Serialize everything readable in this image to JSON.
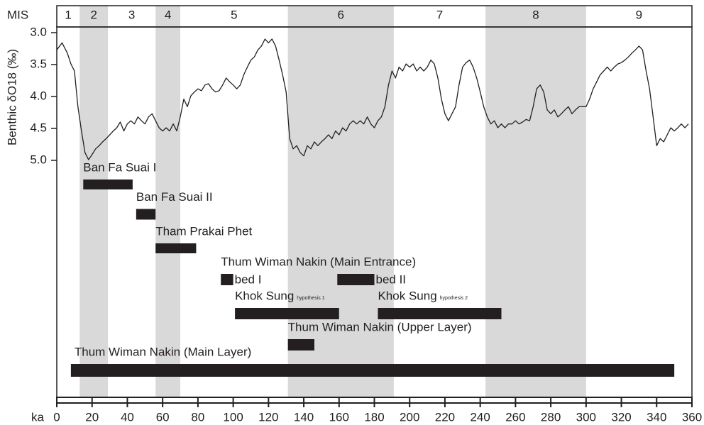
{
  "chart_data": {
    "type": "line",
    "x_label": "ka",
    "y_label": "Benthic δO18 (‰)",
    "xlim": [
      0,
      360
    ],
    "xticks": [
      0,
      20,
      40,
      60,
      80,
      100,
      120,
      140,
      160,
      180,
      200,
      220,
      240,
      260,
      280,
      300,
      320,
      340,
      360
    ],
    "ylim": [
      3,
      5
    ],
    "y_inverted": true,
    "yticks": [
      {
        "value": 3,
        "label": "3.0"
      },
      3.5,
      {
        "value": 4,
        "label": "4.0"
      },
      4.5,
      {
        "value": 5,
        "label": "5.0"
      }
    ],
    "color": "#231f20",
    "shade_color": "#d9d9d9",
    "range_color": "#231f20",
    "mis": {
      "label": "MIS",
      "stages": [
        {
          "name": "1",
          "start": 0,
          "end": 13,
          "shaded": false
        },
        {
          "name": "2",
          "start": 13,
          "end": 29,
          "shaded": true
        },
        {
          "name": "3",
          "start": 29,
          "end": 56,
          "shaded": false
        },
        {
          "name": "4",
          "start": 56,
          "end": 70,
          "shaded": true
        },
        {
          "name": "5",
          "start": 70,
          "end": 131,
          "shaded": false
        },
        {
          "name": "6",
          "start": 131,
          "end": 191,
          "shaded": true
        },
        {
          "name": "7",
          "start": 191,
          "end": 243,
          "shaded": false
        },
        {
          "name": "8",
          "start": 243,
          "end": 300,
          "shaded": true
        },
        {
          "name": "9",
          "start": 300,
          "end": 360,
          "shaded": false
        }
      ]
    },
    "x": [
      0,
      3,
      6,
      8,
      10,
      12,
      14,
      16,
      18,
      20,
      22,
      24,
      26,
      28,
      30,
      32,
      34,
      36,
      38,
      40,
      42,
      44,
      46,
      48,
      50,
      52,
      54,
      56,
      58,
      60,
      62,
      64,
      66,
      68,
      70,
      72,
      74,
      76,
      78,
      80,
      82,
      84,
      86,
      88,
      90,
      92,
      94,
      96,
      98,
      100,
      102,
      104,
      106,
      108,
      110,
      112,
      114,
      116,
      118,
      120,
      122,
      124,
      126,
      128,
      130,
      132,
      134,
      136,
      138,
      140,
      142,
      144,
      146,
      148,
      150,
      152,
      154,
      156,
      158,
      160,
      162,
      164,
      166,
      168,
      170,
      172,
      174,
      176,
      178,
      180,
      182,
      184,
      186,
      188,
      190,
      192,
      194,
      196,
      198,
      200,
      202,
      204,
      206,
      208,
      210,
      212,
      214,
      216,
      218,
      220,
      222,
      224,
      226,
      228,
      230,
      232,
      234,
      236,
      238,
      240,
      242,
      244,
      246,
      248,
      250,
      252,
      254,
      256,
      258,
      260,
      262,
      264,
      266,
      268,
      270,
      272,
      274,
      276,
      278,
      280,
      282,
      284,
      286,
      288,
      290,
      292,
      294,
      296,
      298,
      300,
      302,
      304,
      306,
      308,
      310,
      312,
      314,
      316,
      318,
      320,
      322,
      324,
      326,
      328,
      330,
      332,
      334,
      336,
      338,
      340,
      342,
      344,
      346,
      348,
      350,
      352,
      354,
      356,
      358
    ],
    "values": [
      3.27,
      3.16,
      3.32,
      3.49,
      3.6,
      4.16,
      4.54,
      4.88,
      4.99,
      4.91,
      4.82,
      4.77,
      4.71,
      4.66,
      4.6,
      4.54,
      4.49,
      4.4,
      4.54,
      4.43,
      4.38,
      4.43,
      4.32,
      4.38,
      4.43,
      4.32,
      4.27,
      4.38,
      4.49,
      4.54,
      4.49,
      4.54,
      4.43,
      4.54,
      4.32,
      4.04,
      4.16,
      3.99,
      3.93,
      3.88,
      3.91,
      3.82,
      3.8,
      3.88,
      3.93,
      3.91,
      3.82,
      3.71,
      3.77,
      3.82,
      3.88,
      3.82,
      3.66,
      3.54,
      3.43,
      3.38,
      3.27,
      3.21,
      3.1,
      3.16,
      3.1,
      3.21,
      3.43,
      3.66,
      3.93,
      4.66,
      4.82,
      4.77,
      4.88,
      4.93,
      4.77,
      4.82,
      4.71,
      4.77,
      4.71,
      4.66,
      4.6,
      4.66,
      4.54,
      4.6,
      4.49,
      4.54,
      4.43,
      4.38,
      4.43,
      4.38,
      4.43,
      4.32,
      4.43,
      4.49,
      4.38,
      4.32,
      4.16,
      3.82,
      3.6,
      3.71,
      3.54,
      3.6,
      3.49,
      3.54,
      3.49,
      3.6,
      3.54,
      3.6,
      3.54,
      3.43,
      3.49,
      3.71,
      4.04,
      4.27,
      4.38,
      4.27,
      4.16,
      3.82,
      3.54,
      3.47,
      3.43,
      3.54,
      3.71,
      3.93,
      4.16,
      4.32,
      4.43,
      4.38,
      4.49,
      4.43,
      4.49,
      4.43,
      4.43,
      4.38,
      4.43,
      4.4,
      4.36,
      4.38,
      4.16,
      3.88,
      3.82,
      3.93,
      4.21,
      4.27,
      4.21,
      4.32,
      4.27,
      4.21,
      4.16,
      4.27,
      4.21,
      4.16,
      4.16,
      4.16,
      4.04,
      3.88,
      3.77,
      3.66,
      3.6,
      3.54,
      3.6,
      3.54,
      3.49,
      3.47,
      3.43,
      3.38,
      3.32,
      3.27,
      3.21,
      3.27,
      3.6,
      3.88,
      4.32,
      4.77,
      4.66,
      4.71,
      4.6,
      4.49,
      4.54,
      4.49,
      4.43,
      4.49,
      4.43
    ],
    "ranges": [
      [
        {
          "name": "Ban Fa Suai I",
          "bars": [
            {
              "start": 15,
              "end": 43
            }
          ]
        }
      ],
      [
        {
          "name": "Ban Fa Suai II",
          "bars": [
            {
              "start": 45,
              "end": 56
            }
          ]
        }
      ],
      [
        {
          "name": "Tham Prakai Phet",
          "bars": [
            {
              "start": 56,
              "end": 79
            }
          ]
        }
      ],
      [
        {
          "name": "Thum Wiman Nakin (Main Entrance)",
          "bars": [
            {
              "start": 93,
              "end": 100,
              "label": "bed I"
            },
            {
              "start": 159,
              "end": 180,
              "label": "bed II"
            }
          ]
        }
      ],
      [
        {
          "name": "Khok Sung",
          "note": "hypothesis 1",
          "bars": [
            {
              "start": 101,
              "end": 160
            }
          ]
        },
        {
          "name": "Khok Sung",
          "note": "hypothesis 2",
          "bars": [
            {
              "start": 182,
              "end": 252
            }
          ]
        }
      ],
      [
        {
          "name": "Thum Wiman Nakin (Upper Layer)",
          "bars": [
            {
              "start": 131,
              "end": 146
            }
          ]
        }
      ],
      [
        {
          "name": "Thum Wiman Nakin (Main Layer)",
          "bars": [
            {
              "start": 8,
              "end": 350
            }
          ]
        }
      ]
    ]
  }
}
